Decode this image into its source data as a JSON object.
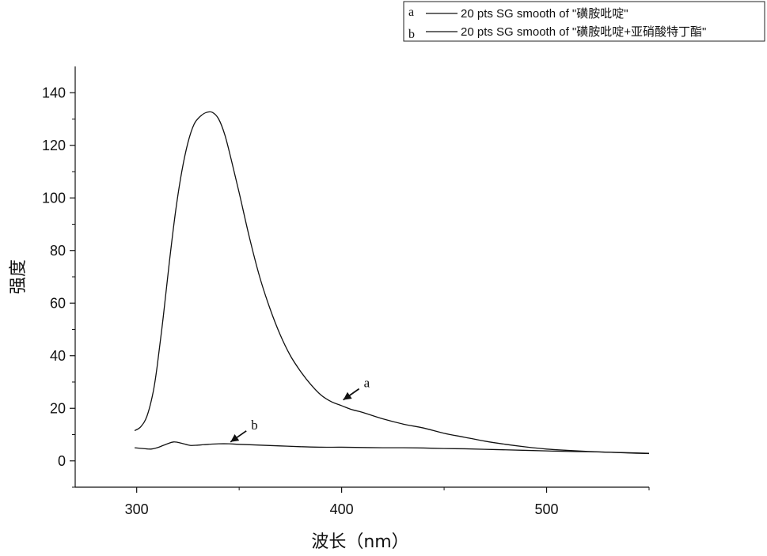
{
  "chart_data": {
    "type": "line",
    "xlabel": "波长（nm）",
    "ylabel": "强度",
    "xlim": [
      270,
      550
    ],
    "ylim": [
      -10,
      150
    ],
    "x_ticks": [
      300,
      400,
      500
    ],
    "y_ticks": [
      0,
      20,
      40,
      60,
      80,
      100,
      120,
      140
    ],
    "grid": false,
    "legend_position": "top-right",
    "legend": [
      {
        "tag": "a",
        "text": "20 pts SG smooth of \"磺胺吡啶\""
      },
      {
        "tag": "b",
        "text": "20 pts SG smooth of \"磺胺吡啶+亚硝酸特丁酯\""
      }
    ],
    "annotations": [
      {
        "text": "a",
        "series": "a",
        "x": 400,
        "y": 22
      },
      {
        "text": "b",
        "series": "b",
        "x": 345,
        "y": 6
      }
    ],
    "series": [
      {
        "name": "a",
        "color": "#111111",
        "x": [
          299,
          302,
          305,
          308,
          310,
          313,
          316,
          319,
          322,
          325,
          328,
          331,
          334,
          337,
          340,
          343,
          346,
          350,
          355,
          360,
          365,
          370,
          375,
          380,
          385,
          390,
          395,
          400,
          405,
          410,
          420,
          430,
          440,
          450,
          460,
          470,
          480,
          490,
          500,
          510,
          520,
          530,
          540,
          550
        ],
        "y": [
          11.5,
          13,
          17,
          26,
          36,
          55,
          76,
          95,
          110,
          121,
          128,
          131,
          132.5,
          132.5,
          130,
          124,
          115,
          102,
          85,
          70,
          58,
          48,
          40,
          34,
          29,
          25,
          22.5,
          21,
          19.5,
          18.5,
          16,
          14,
          12.5,
          10.5,
          9,
          7.5,
          6.3,
          5.3,
          4.5,
          4,
          3.6,
          3.3,
          3,
          2.8
        ]
      },
      {
        "name": "b",
        "color": "#111111",
        "x": [
          299,
          303,
          307,
          310,
          314,
          318,
          322,
          326,
          330,
          335,
          340,
          345,
          350,
          360,
          370,
          380,
          390,
          400,
          410,
          420,
          430,
          440,
          450,
          460,
          470,
          480,
          490,
          500,
          510,
          520,
          530,
          540,
          550
        ],
        "y": [
          5,
          4.7,
          4.5,
          5,
          6.2,
          7.2,
          6.7,
          5.9,
          6,
          6.3,
          6.5,
          6.5,
          6.3,
          6,
          5.7,
          5.4,
          5.2,
          5.2,
          5.1,
          5,
          5,
          4.9,
          4.7,
          4.6,
          4.4,
          4.2,
          4,
          3.8,
          3.6,
          3.5,
          3.3,
          3.1,
          2.9
        ]
      }
    ]
  }
}
